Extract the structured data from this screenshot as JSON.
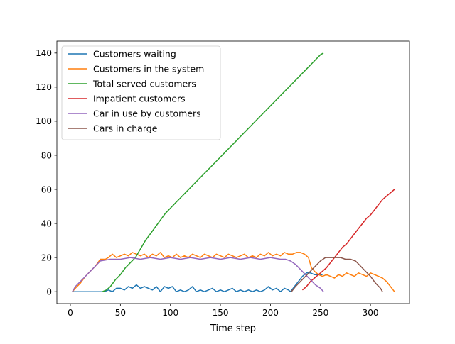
{
  "chart_data": {
    "type": "line",
    "title": "",
    "xlabel": "Time step",
    "ylabel": "",
    "xlim": [
      -13.5,
      339
    ],
    "ylim": [
      -7,
      147
    ],
    "xticks": [
      0,
      50,
      100,
      150,
      200,
      250,
      300
    ],
    "yticks": [
      0,
      20,
      40,
      60,
      80,
      100,
      120,
      140
    ],
    "grid": false,
    "legend_position": "upper left",
    "series": [
      {
        "name": "Customers waiting",
        "color": "#1f77b4",
        "x": [
          2,
          10,
          20,
          30,
          34,
          38,
          42,
          46,
          50,
          54,
          58,
          62,
          66,
          70,
          74,
          78,
          82,
          86,
          90,
          94,
          98,
          102,
          106,
          110,
          114,
          118,
          122,
          126,
          130,
          134,
          138,
          142,
          146,
          150,
          154,
          158,
          162,
          166,
          170,
          174,
          178,
          182,
          186,
          190,
          194,
          198,
          202,
          206,
          210,
          214,
          218,
          220,
          224,
          228,
          232,
          236,
          240,
          244,
          248,
          252
        ],
        "y": [
          0,
          0,
          0,
          0,
          0,
          1,
          0,
          2,
          2,
          1,
          3,
          2,
          4,
          2,
          3,
          2,
          1,
          3,
          0,
          3,
          2,
          3,
          0,
          1,
          0,
          1,
          3,
          0,
          1,
          0,
          1,
          2,
          0,
          1,
          0,
          1,
          2,
          0,
          1,
          0,
          1,
          0,
          1,
          0,
          1,
          3,
          1,
          2,
          0,
          2,
          1,
          0,
          3,
          6,
          9,
          11,
          11,
          10,
          10,
          10
        ]
      },
      {
        "name": "Customers in the system",
        "color": "#ff7f0e",
        "x": [
          2,
          5,
          10,
          15,
          20,
          25,
          30,
          35,
          38,
          42,
          46,
          50,
          54,
          58,
          62,
          66,
          70,
          74,
          78,
          82,
          86,
          90,
          94,
          98,
          102,
          106,
          110,
          114,
          118,
          122,
          126,
          130,
          134,
          138,
          142,
          146,
          150,
          154,
          158,
          162,
          166,
          170,
          174,
          178,
          182,
          186,
          190,
          194,
          198,
          202,
          206,
          210,
          214,
          218,
          222,
          226,
          230,
          234,
          238,
          241,
          244,
          248,
          252,
          256,
          260,
          264,
          268,
          272,
          276,
          280,
          284,
          288,
          292,
          296,
          300,
          304,
          308,
          312,
          316,
          320,
          324
        ],
        "y": [
          0,
          2,
          5,
          9,
          12,
          15,
          19,
          19,
          20,
          22,
          20,
          21,
          22,
          21,
          23,
          22,
          21,
          22,
          20,
          22,
          21,
          23,
          20,
          21,
          20,
          22,
          20,
          21,
          20,
          22,
          21,
          20,
          22,
          21,
          20,
          22,
          21,
          20,
          22,
          21,
          20,
          21,
          22,
          20,
          21,
          20,
          22,
          21,
          23,
          21,
          22,
          21,
          23,
          22,
          22,
          23,
          23,
          22,
          20,
          14,
          12,
          10,
          9,
          10,
          9,
          8,
          10,
          9,
          11,
          10,
          9,
          11,
          10,
          9,
          11,
          10,
          9,
          8,
          6,
          3,
          0
        ]
      },
      {
        "name": "Total served customers",
        "color": "#2ca02c",
        "x": [
          32,
          36,
          40,
          45,
          50,
          55,
          60,
          65,
          70,
          75,
          80,
          85,
          90,
          95,
          100,
          105,
          110,
          115,
          120,
          125,
          130,
          135,
          140,
          145,
          150,
          155,
          160,
          165,
          170,
          175,
          180,
          185,
          190,
          195,
          200,
          205,
          210,
          215,
          220,
          225,
          230,
          235,
          240,
          245,
          250,
          253
        ],
        "y": [
          0,
          1,
          3,
          7,
          10,
          14,
          17,
          20,
          25,
          30,
          34,
          38,
          42,
          46,
          49,
          52,
          55,
          58,
          61,
          64,
          67,
          70,
          73,
          76,
          79,
          82,
          85,
          88,
          91,
          94,
          97,
          100,
          103,
          106,
          109,
          112,
          115,
          118,
          121,
          124,
          127,
          130,
          133,
          136,
          139,
          140
        ]
      },
      {
        "name": "Impatient customers",
        "color": "#d62728",
        "x": [
          232,
          236,
          240,
          244,
          248,
          252,
          256,
          260,
          264,
          268,
          272,
          276,
          280,
          284,
          288,
          292,
          296,
          300,
          304,
          308,
          312,
          316,
          320,
          324
        ],
        "y": [
          1,
          3,
          6,
          8,
          10,
          12,
          14,
          17,
          20,
          23,
          26,
          28,
          31,
          34,
          37,
          40,
          43,
          45,
          48,
          51,
          54,
          56,
          58,
          60
        ]
      },
      {
        "name": "Car in use by customers",
        "color": "#9467bd",
        "x": [
          2,
          5,
          10,
          15,
          20,
          25,
          30,
          40,
          50,
          60,
          70,
          80,
          90,
          100,
          110,
          120,
          130,
          140,
          150,
          160,
          170,
          180,
          190,
          200,
          210,
          215,
          220,
          225,
          230,
          235,
          240,
          245,
          250,
          253
        ],
        "y": [
          0,
          3,
          6,
          9,
          12,
          15,
          18,
          19,
          19,
          20,
          19,
          20,
          19,
          20,
          19,
          20,
          19,
          20,
          19,
          20,
          19,
          20,
          19,
          20,
          19,
          19,
          18,
          16,
          13,
          10,
          7,
          4,
          2,
          0
        ]
      },
      {
        "name": "Cars in charge",
        "color": "#8c564b",
        "x": [
          221,
          225,
          230,
          235,
          240,
          245,
          250,
          255,
          260,
          265,
          270,
          275,
          280,
          285,
          290,
          295,
          300,
          305,
          310,
          312
        ],
        "y": [
          0,
          3,
          6,
          9,
          12,
          15,
          18,
          20,
          20,
          20,
          20,
          19,
          19,
          18,
          15,
          12,
          9,
          5,
          2,
          0
        ]
      }
    ]
  }
}
